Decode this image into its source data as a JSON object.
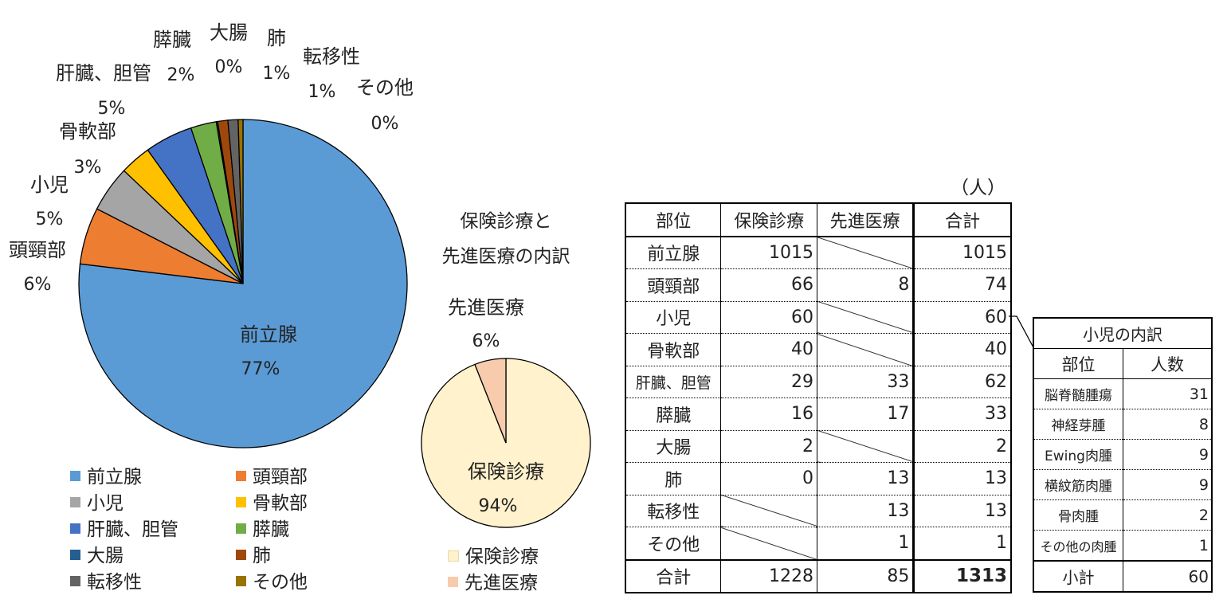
{
  "chart_data": [
    {
      "type": "pie",
      "title": "",
      "slices": [
        {
          "name": "前立腺",
          "value": 77,
          "color": "#5B9BD5"
        },
        {
          "name": "頭頸部",
          "value": 6,
          "color": "#ED7D31"
        },
        {
          "name": "小児",
          "value": 5,
          "color": "#A5A5A5"
        },
        {
          "name": "骨軟部",
          "value": 3,
          "color": "#FFC000"
        },
        {
          "name": "肝臓、胆管",
          "value": 5,
          "color": "#4472C4"
        },
        {
          "name": "膵臓",
          "value": 2,
          "color": "#70AD47"
        },
        {
          "name": "大腸",
          "value": 0,
          "color": "#255E91"
        },
        {
          "name": "肺",
          "value": 1,
          "color": "#9E480E"
        },
        {
          "name": "転移性",
          "value": 1,
          "color": "#636363"
        },
        {
          "name": "その他",
          "value": 0,
          "color": "#997300"
        }
      ],
      "legend_placement": "bottom"
    },
    {
      "type": "pie",
      "title": "保険診療と\n先進医療の内訳",
      "title_lines": [
        "保険診療と",
        "先進医療の内訳"
      ],
      "slices": [
        {
          "name": "保険診療",
          "value": 94,
          "color": "#FFF2CC"
        },
        {
          "name": "先進医療",
          "value": 6,
          "color": "#F8CBAD"
        }
      ],
      "legend_placement": "bottom"
    }
  ],
  "main_table": {
    "unit": "（人）",
    "headers": [
      "部位",
      "保険診療",
      "先進医療",
      "合計"
    ],
    "rows": [
      {
        "part": "前立腺",
        "insurance": "1015",
        "advanced": "",
        "total": "1015"
      },
      {
        "part": "頭頸部",
        "insurance": "66",
        "advanced": "8",
        "total": "74"
      },
      {
        "part": "小児",
        "insurance": "60",
        "advanced": "",
        "total": "60"
      },
      {
        "part": "骨軟部",
        "insurance": "40",
        "advanced": "",
        "total": "40"
      },
      {
        "part": "肝臓、胆管",
        "insurance": "29",
        "advanced": "33",
        "total": "62"
      },
      {
        "part": "膵臓",
        "insurance": "16",
        "advanced": "17",
        "total": "33"
      },
      {
        "part": "大腸",
        "insurance": "2",
        "advanced": "",
        "total": "2"
      },
      {
        "part": "肺",
        "insurance": "0",
        "advanced": "13",
        "total": "13"
      },
      {
        "part": "転移性",
        "insurance": "",
        "advanced": "13",
        "total": "13"
      },
      {
        "part": "その他",
        "insurance": "",
        "advanced": "1",
        "total": "1"
      }
    ],
    "total_row": {
      "part": "合計",
      "insurance": "1228",
      "advanced": "85",
      "total": "1313"
    }
  },
  "sub_table": {
    "title": "小児の内訳",
    "headers": [
      "部位",
      "人数"
    ],
    "rows": [
      {
        "name": "脳脊髄腫瘍",
        "count": "31"
      },
      {
        "name": "神経芽腫",
        "count": "8"
      },
      {
        "name": "Ewing肉腫",
        "count": "9"
      },
      {
        "name": "横紋筋肉腫",
        "count": "9"
      },
      {
        "name": "骨肉腫",
        "count": "2"
      },
      {
        "name": "その他の肉腫",
        "count": "1"
      }
    ],
    "total_row": {
      "name": "小計",
      "count": "60"
    }
  }
}
